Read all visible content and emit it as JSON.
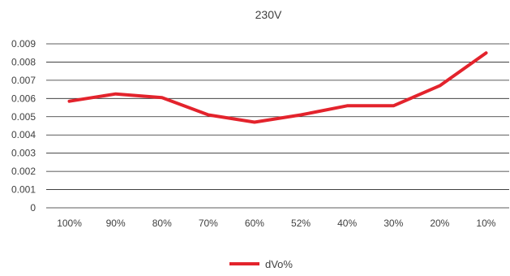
{
  "chart_data": {
    "type": "line",
    "title": "230V",
    "xlabel": "",
    "ylabel": "",
    "categories": [
      "100%",
      "90%",
      "80%",
      "70%",
      "60%",
      "52%",
      "40%",
      "30%",
      "20%",
      "10%"
    ],
    "y_ticks": [
      "0",
      "0.001",
      "0.002",
      "0.003",
      "0.004",
      "0.005",
      "0.006",
      "0.007",
      "0.008",
      "0.009"
    ],
    "ylim": [
      0,
      0.009
    ],
    "grid": true,
    "legend_position": "bottom",
    "series": [
      {
        "name": "dVo%",
        "color": "#e3232c",
        "values": [
          0.00585,
          0.00625,
          0.00605,
          0.0051,
          0.0047,
          0.0051,
          0.0056,
          0.0056,
          0.0067,
          0.0085
        ]
      }
    ]
  }
}
